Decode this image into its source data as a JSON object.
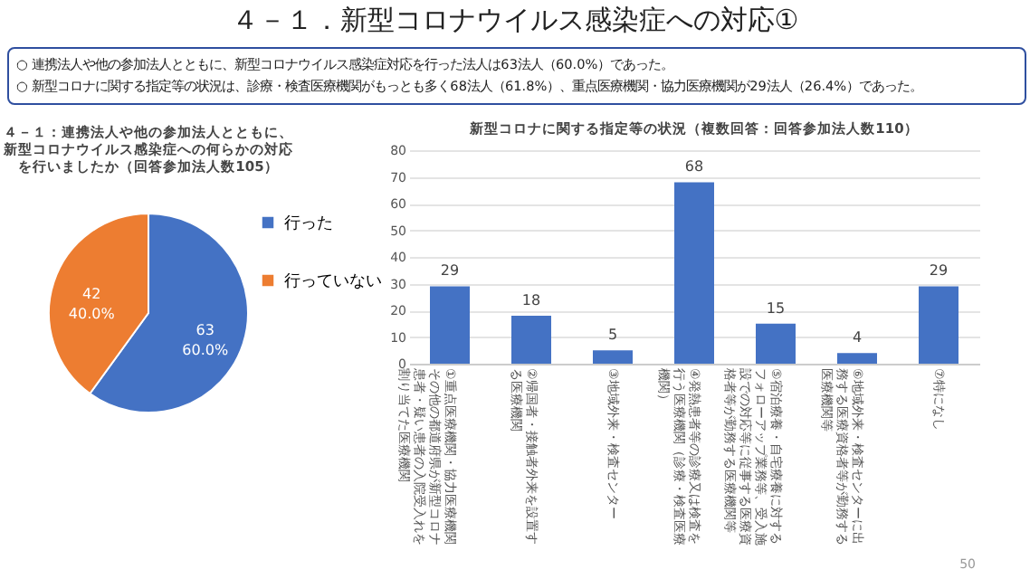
{
  "chart_data": [
    {
      "type": "other",
      "title": "４－１．新型コロナウイルス感染症への対応①",
      "annotations": [
        "○ 連携法人や他の参加法人とともに、新型コロナウイルス感染症対応を行った法人は63法人（60.0%）であった。",
        "○ 新型コロナに関する指定等の状況は、診療・検査医療機関がもっとも多く68法人（61.8%）、重点医療機関・協力医療機関が29法人（26.4%）であった。",
        "50"
      ]
    },
    {
      "type": "pie",
      "title": "４－１：連携法人や他の参加法人とともに、新型コロナウイルス感染症への何らかの対応を行いましたか（回答参加法人数105）",
      "categories": [
        "行った",
        "行っていない"
      ],
      "values": [
        63,
        42
      ],
      "colors": [
        "#4472c4",
        "#ed7d31"
      ],
      "value_labels": [
        "63\n60.0%",
        "42\n40.0%"
      ],
      "legend": "right"
    },
    {
      "type": "bar",
      "title": "新型コロナに関する指定等の状況（複数回答：回答参加法人数110）",
      "categories": [
        "①重点医療機関・協力医療機関その他の都道府県が新型コロナ患者・疑い患者の入院受入れを割り当てた医療機関",
        "②帰国者・接触者外来を設置する医療機関",
        "③地域外来・検査センター",
        "④発熱患者等の診療又は検査を行う医療機関（診療・検査医療機関）",
        "⑤宿泊療養・自宅療養に対するフォローアップ業務等、受入施設での対応等に従事する医療資格者等が勤務する医療機関等",
        "⑥地域外来・検査センターに出務する医療資格者等が勤務する医療機関等",
        "⑦特になし"
      ],
      "values": [
        29,
        18,
        5,
        68,
        15,
        4,
        29
      ],
      "color": "#4472c4",
      "ylim": [
        0,
        80
      ],
      "yticks": [
        0,
        10,
        20,
        30,
        40,
        50,
        60,
        70,
        80
      ],
      "grid": "y",
      "data_labels": true
    }
  ]
}
